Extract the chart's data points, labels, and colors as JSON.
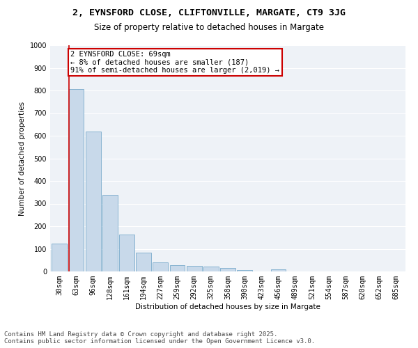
{
  "title_line1": "2, EYNSFORD CLOSE, CLIFTONVILLE, MARGATE, CT9 3JG",
  "title_line2": "Size of property relative to detached houses in Margate",
  "xlabel": "Distribution of detached houses by size in Margate",
  "ylabel": "Number of detached properties",
  "bar_color": "#c8d9ea",
  "bar_edge_color": "#7aabcc",
  "categories": [
    "30sqm",
    "63sqm",
    "96sqm",
    "128sqm",
    "161sqm",
    "194sqm",
    "227sqm",
    "259sqm",
    "292sqm",
    "325sqm",
    "358sqm",
    "390sqm",
    "423sqm",
    "456sqm",
    "489sqm",
    "521sqm",
    "554sqm",
    "587sqm",
    "620sqm",
    "652sqm",
    "685sqm"
  ],
  "values": [
    122,
    805,
    618,
    338,
    163,
    82,
    40,
    27,
    24,
    22,
    14,
    5,
    0,
    8,
    0,
    0,
    0,
    0,
    0,
    0,
    0
  ],
  "property_label": "2 EYNSFORD CLOSE: 69sqm",
  "annotation_line2": "← 8% of detached houses are smaller (187)",
  "annotation_line3": "91% of semi-detached houses are larger (2,019) →",
  "annotation_box_color": "#ffffff",
  "annotation_box_edge": "#cc0000",
  "vline_color": "#cc0000",
  "ylim": [
    0,
    1000
  ],
  "yticks": [
    0,
    100,
    200,
    300,
    400,
    500,
    600,
    700,
    800,
    900,
    1000
  ],
  "background_color": "#eef2f7",
  "grid_color": "#ffffff",
  "footer_line1": "Contains HM Land Registry data © Crown copyright and database right 2025.",
  "footer_line2": "Contains public sector information licensed under the Open Government Licence v3.0.",
  "title_fontsize": 9.5,
  "subtitle_fontsize": 8.5,
  "axis_label_fontsize": 7.5,
  "tick_fontsize": 7,
  "annotation_fontsize": 7.5,
  "footer_fontsize": 6.5
}
